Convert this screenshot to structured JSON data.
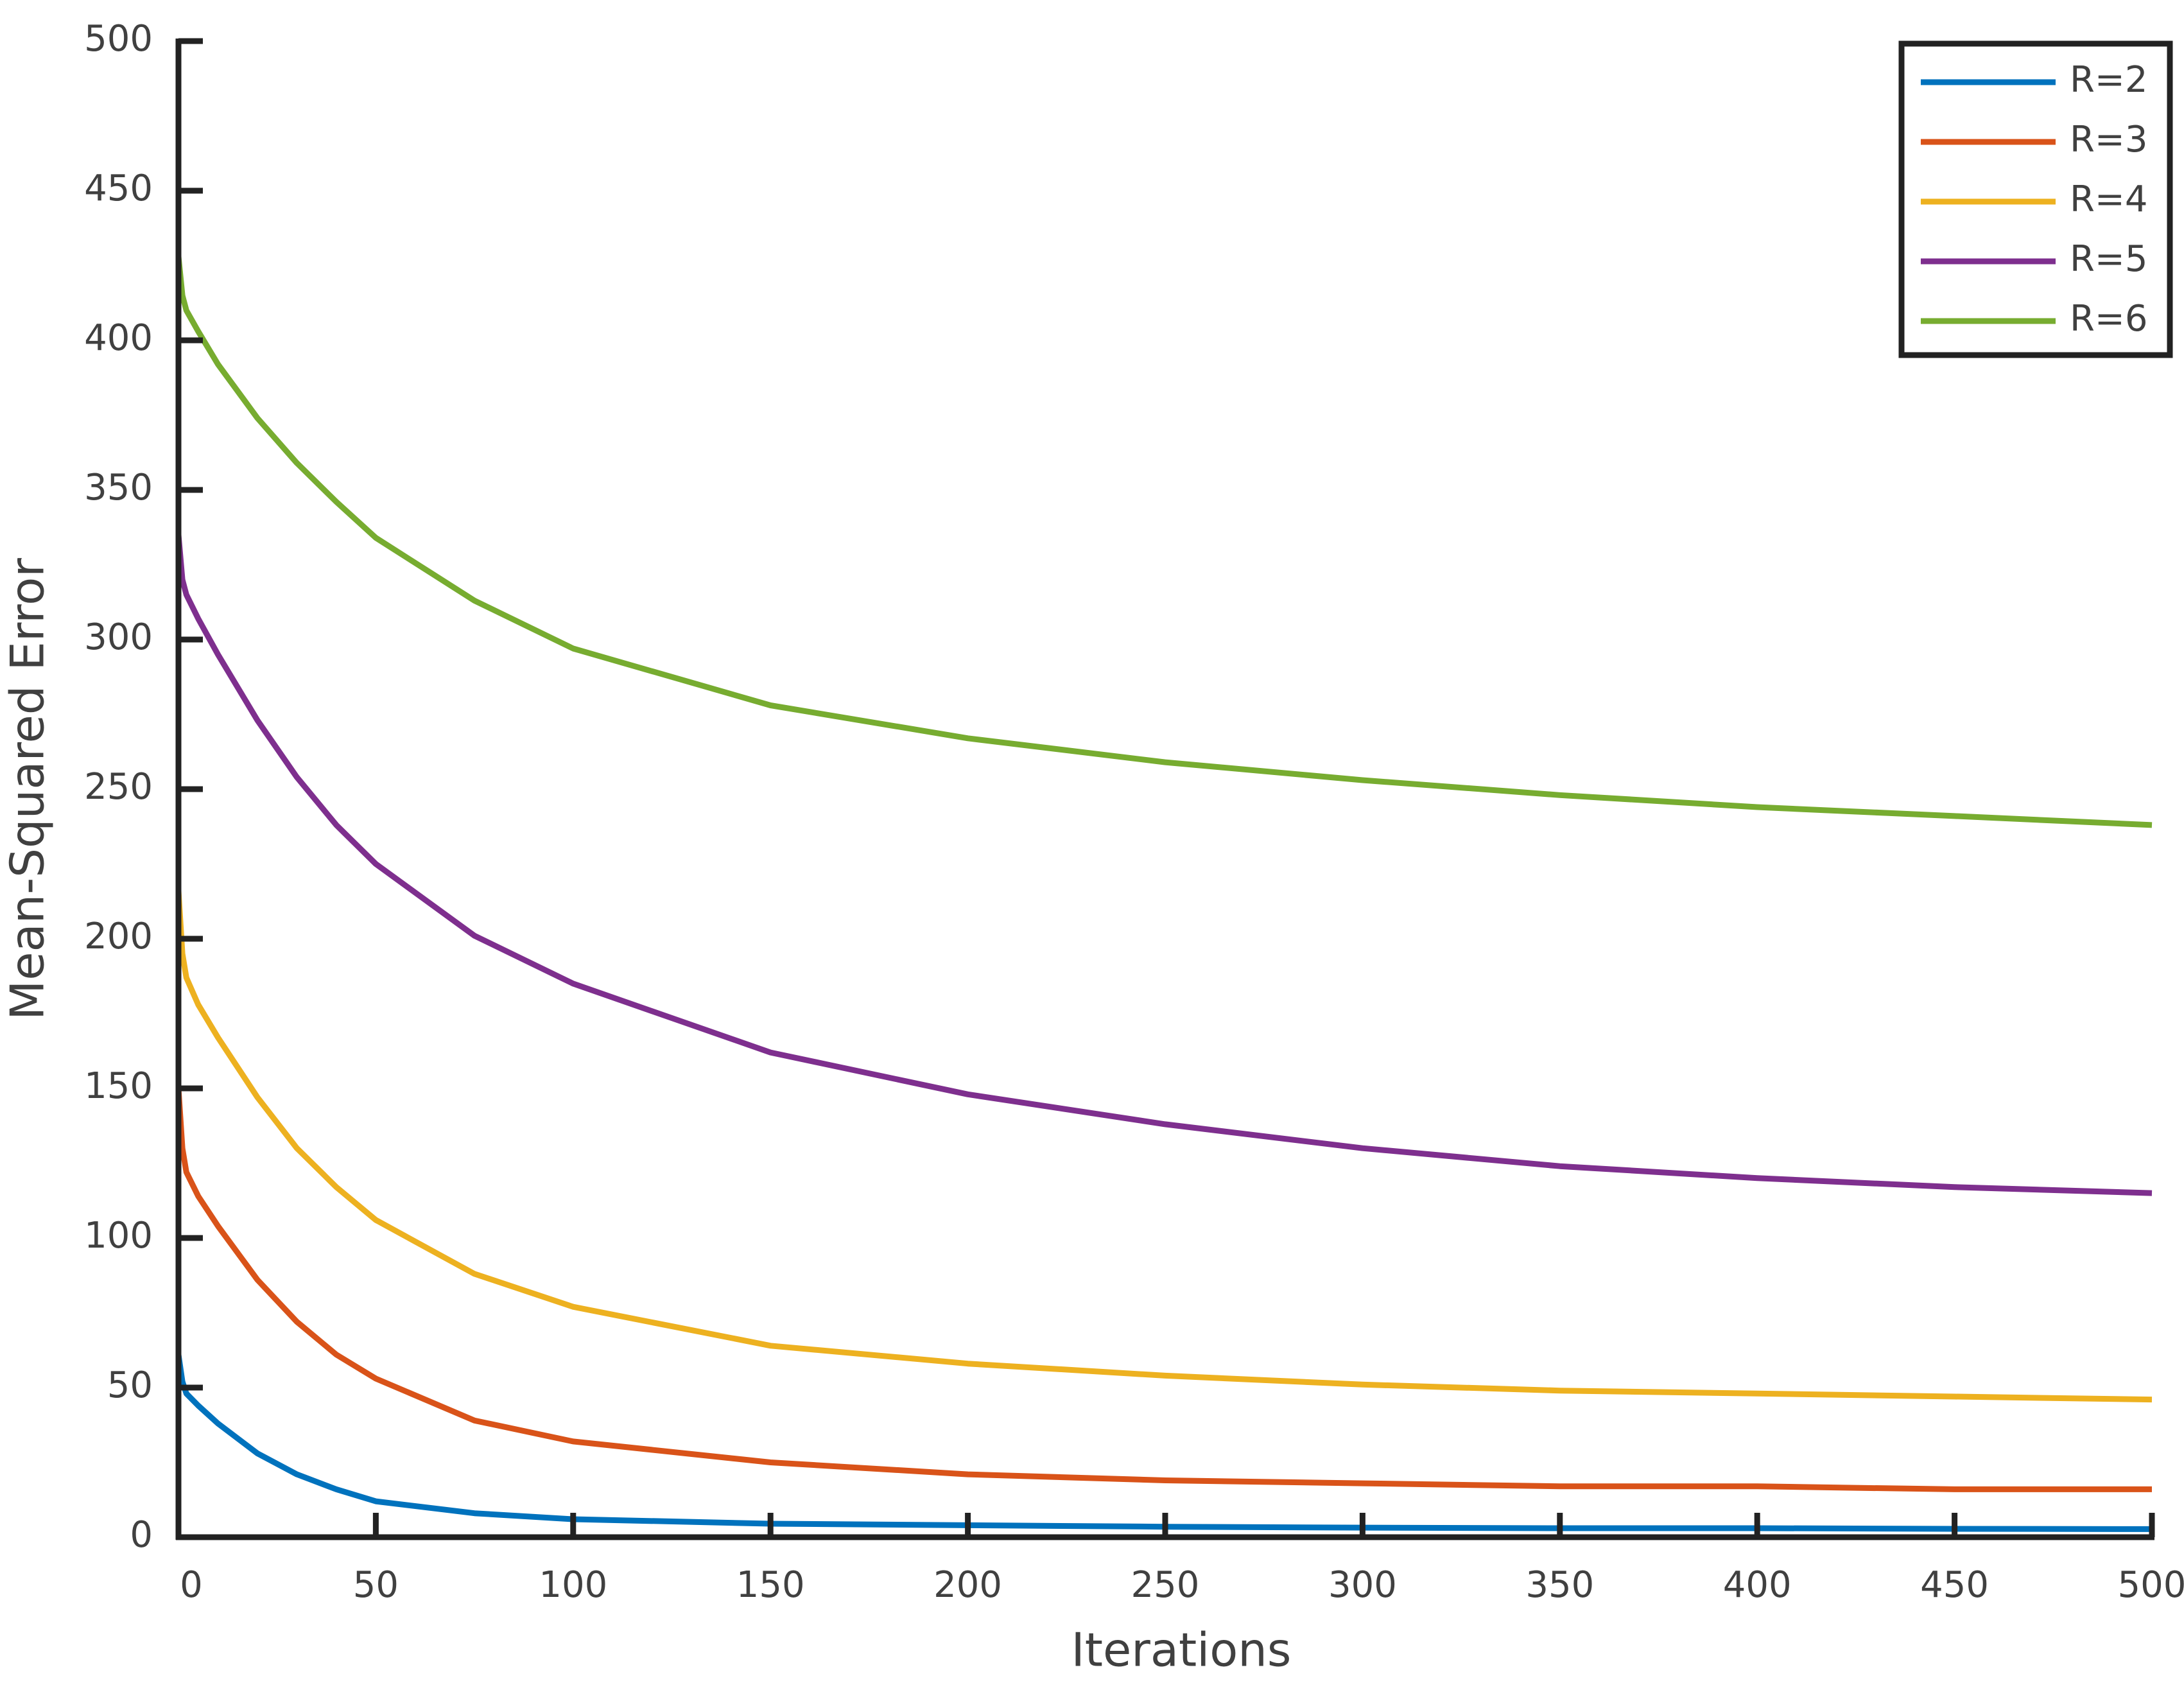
{
  "chart_data": {
    "type": "line",
    "xlabel": "Iterations",
    "ylabel": "Mean-Squared Error",
    "x": [
      0,
      1,
      2,
      5,
      10,
      20,
      30,
      40,
      50,
      75,
      100,
      150,
      200,
      250,
      300,
      350,
      400,
      450,
      500
    ],
    "series": [
      {
        "name": "R=2",
        "color": "#0072bd",
        "values": [
          61,
          52,
          48,
          44,
          38,
          28,
          21,
          16,
          12,
          8,
          6,
          4.5,
          4,
          3.5,
          3.2,
          3,
          3,
          2.8,
          2.7
        ]
      },
      {
        "name": "R=3",
        "color": "#d95319",
        "values": [
          150,
          130,
          122,
          114,
          104,
          86,
          72,
          61,
          53,
          39,
          32,
          25,
          21,
          19,
          18,
          17,
          17,
          16,
          16
        ]
      },
      {
        "name": "R=4",
        "color": "#edb120",
        "values": [
          216,
          195,
          187,
          178,
          167,
          147,
          130,
          117,
          106,
          88,
          77,
          64,
          58,
          54,
          51,
          49,
          48,
          47,
          46
        ]
      },
      {
        "name": "R=5",
        "color": "#7e2f8e",
        "values": [
          335,
          320,
          315,
          307,
          295,
          273,
          254,
          238,
          225,
          201,
          185,
          162,
          148,
          138,
          130,
          124,
          120,
          117,
          115
        ]
      },
      {
        "name": "R=6",
        "color": "#77ac30",
        "values": [
          428,
          415,
          410,
          403,
          392,
          374,
          359,
          346,
          334,
          313,
          297,
          278,
          267,
          259,
          253,
          248,
          244,
          241,
          238
        ]
      }
    ],
    "xlim": [
      0,
      500
    ],
    "xticks": [
      0,
      50,
      100,
      150,
      200,
      250,
      300,
      350,
      400,
      450,
      500
    ],
    "ylim": [
      0,
      500
    ],
    "yticks": [
      0,
      50,
      100,
      150,
      200,
      250,
      300,
      350,
      400,
      450,
      500
    ],
    "grid": false,
    "legend": "top-right"
  }
}
